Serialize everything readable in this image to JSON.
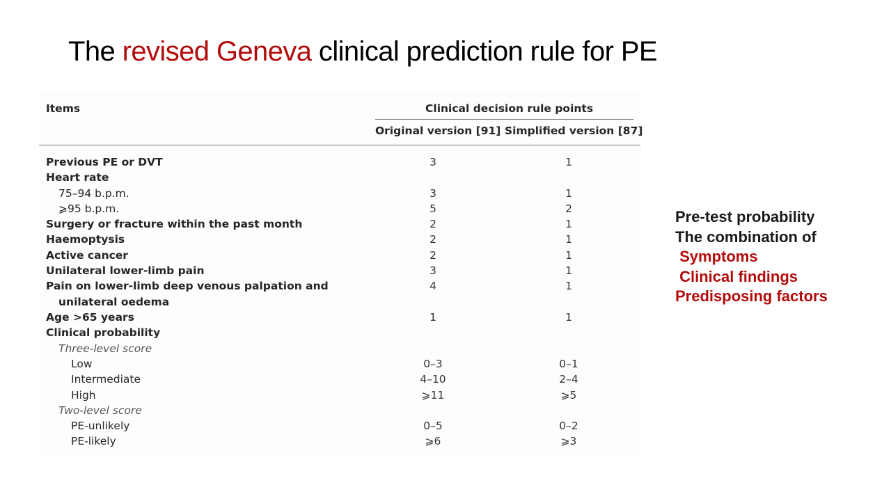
{
  "slide": {
    "title_prefix": "The ",
    "title_accent": "revised Geneva",
    "title_suffix": " clinical prediction rule for PE",
    "accent_color": "#b30c0c"
  },
  "table": {
    "col_items": "Items",
    "col_group": "Clinical decision rule points",
    "col_original": "Original version [91]",
    "col_simplified": "Simplified version [87]",
    "rows": [
      {
        "label": "Previous PE or DVT",
        "original": "3",
        "simplified": "1"
      },
      {
        "label": "Heart rate",
        "original": "",
        "simplified": ""
      },
      {
        "label": "75–94 b.p.m.",
        "original": "3",
        "simplified": "1"
      },
      {
        "label": "⩾95 b.p.m.",
        "original": "5",
        "simplified": "2"
      },
      {
        "label": "Surgery or fracture within the past month",
        "original": "2",
        "simplified": "1"
      },
      {
        "label": "Haemoptysis",
        "original": "2",
        "simplified": "1"
      },
      {
        "label": "Active cancer",
        "original": "2",
        "simplified": "1"
      },
      {
        "label": "Unilateral lower-limb pain",
        "original": "3",
        "simplified": "1"
      },
      {
        "label": "Pain on lower-limb deep venous palpation and",
        "label_cont": "unilateral oedema",
        "original": "4",
        "simplified": "1"
      },
      {
        "label": "Age >65 years",
        "original": "1",
        "simplified": "1"
      },
      {
        "label": "Clinical probability",
        "original": "",
        "simplified": ""
      },
      {
        "label": "Three-level score",
        "original": "",
        "simplified": ""
      },
      {
        "label": "Low",
        "original": "0–3",
        "simplified": "0–1"
      },
      {
        "label": "Intermediate",
        "original": "4–10",
        "simplified": "2–4"
      },
      {
        "label": "High",
        "original": "⩾11",
        "simplified": "⩾5"
      },
      {
        "label": "Two-level score",
        "original": "",
        "simplified": ""
      },
      {
        "label": "PE-unlikely",
        "original": "0–5",
        "simplified": "0–2"
      },
      {
        "label": "PE-likely",
        "original": "⩾6",
        "simplified": "⩾3"
      }
    ]
  },
  "side_panel": {
    "lines": [
      "Pre-test probability",
      "The combination of",
      " Symptoms",
      " Clinical findings",
      "Predisposing factors"
    ]
  }
}
